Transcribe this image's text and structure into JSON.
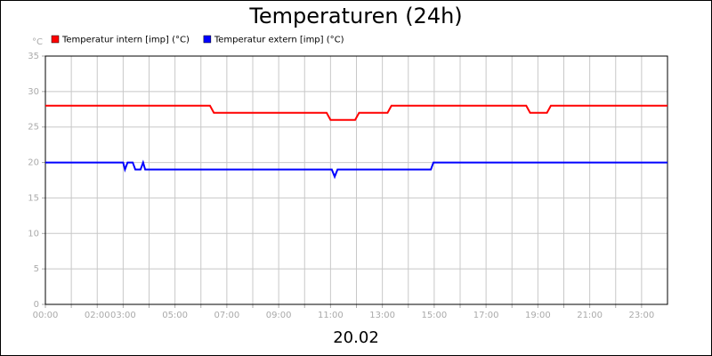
{
  "chart_data": {
    "type": "line",
    "title": "Temperaturen (24h)",
    "xlabel": "20.02",
    "ylabel": "°C",
    "xlim": [
      0,
      24
    ],
    "ylim": [
      0,
      35
    ],
    "xticks": [
      {
        "value": 0,
        "label": "00:00"
      },
      {
        "value": 1,
        "label": null
      },
      {
        "value": 2,
        "label": "02:00"
      },
      {
        "value": 3,
        "label": "03:00"
      },
      {
        "value": 4,
        "label": null
      },
      {
        "value": 5,
        "label": "05:00"
      },
      {
        "value": 6,
        "label": null
      },
      {
        "value": 7,
        "label": "07:00"
      },
      {
        "value": 8,
        "label": null
      },
      {
        "value": 9,
        "label": "09:00"
      },
      {
        "value": 10,
        "label": null
      },
      {
        "value": 11,
        "label": "11:00"
      },
      {
        "value": 12,
        "label": null
      },
      {
        "value": 13,
        "label": "13:00"
      },
      {
        "value": 14,
        "label": null
      },
      {
        "value": 15,
        "label": "15:00"
      },
      {
        "value": 16,
        "label": null
      },
      {
        "value": 17,
        "label": "17:00"
      },
      {
        "value": 18,
        "label": null
      },
      {
        "value": 19,
        "label": "19:00"
      },
      {
        "value": 20,
        "label": null
      },
      {
        "value": 21,
        "label": "21:00"
      },
      {
        "value": 22,
        "label": null
      },
      {
        "value": 23,
        "label": "23:00"
      }
    ],
    "yticks": [
      0,
      5,
      10,
      15,
      20,
      25,
      30,
      35
    ],
    "grid": true,
    "series": [
      {
        "name": "Temperatur intern [imp] (°C)",
        "color": "#ff0000",
        "x": [
          0,
          6.35,
          6.5,
          10.85,
          11.0,
          11.95,
          12.1,
          13.2,
          13.35,
          18.55,
          18.7,
          19.35,
          19.5,
          24
        ],
        "values": [
          28,
          28,
          27,
          27,
          26,
          26,
          27,
          27,
          28,
          28,
          27,
          27,
          28,
          28
        ]
      },
      {
        "name": "Temperatur extern [imp] (°C)",
        "color": "#0000ff",
        "x": [
          0,
          3.0,
          3.07,
          3.17,
          3.37,
          3.47,
          3.67,
          3.77,
          3.85,
          11.05,
          11.16,
          11.27,
          14.87,
          14.97,
          24
        ],
        "values": [
          20,
          20,
          19,
          20,
          20,
          19,
          19,
          20,
          19,
          19,
          18,
          19,
          19,
          20,
          20
        ]
      }
    ]
  }
}
